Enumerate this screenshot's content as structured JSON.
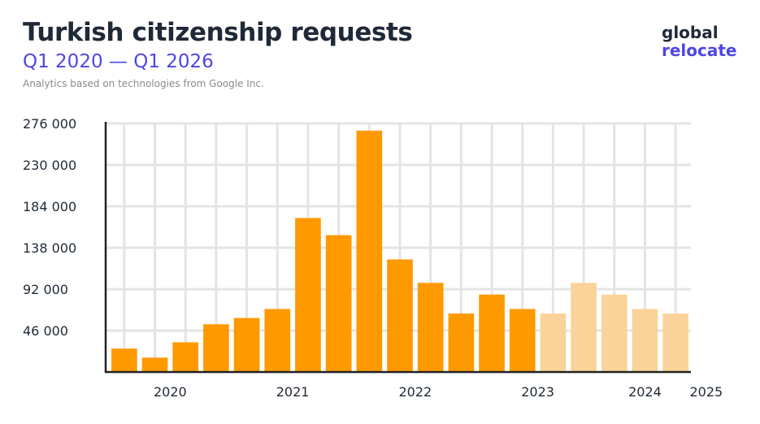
{
  "header": {
    "title": "Turkish citizenship requests",
    "subtitle": "Q1 2020 — Q1 2026",
    "attribution": "Analytics based on technologies from Google Inc."
  },
  "logo": {
    "line1": "global",
    "line2": "relocate"
  },
  "colors": {
    "bar_actual": "#ff9900",
    "bar_light": "#fad39a",
    "grid": "#e4e4e4",
    "axis": "#222222"
  },
  "chart_data": {
    "type": "bar",
    "title": "Turkish citizenship requests",
    "xlabel": "",
    "ylabel": "",
    "ylim": [
      0,
      276000
    ],
    "yticks": [
      46000,
      92000,
      138000,
      184000,
      230000,
      276000
    ],
    "ytick_labels": [
      "46 000",
      "92 000",
      "138 000",
      "184 000",
      "230 000",
      "276 000"
    ],
    "xtick_labels": [
      "2020",
      "2021",
      "2022",
      "2023",
      "2024",
      "2025"
    ],
    "grid": true,
    "values": [
      26000,
      16000,
      33000,
      53000,
      60000,
      70000,
      171000,
      152000,
      268000,
      125000,
      99000,
      65000,
      86000,
      70000,
      65000,
      99000,
      86000,
      70000,
      65000
    ],
    "light_from_index": 14
  }
}
